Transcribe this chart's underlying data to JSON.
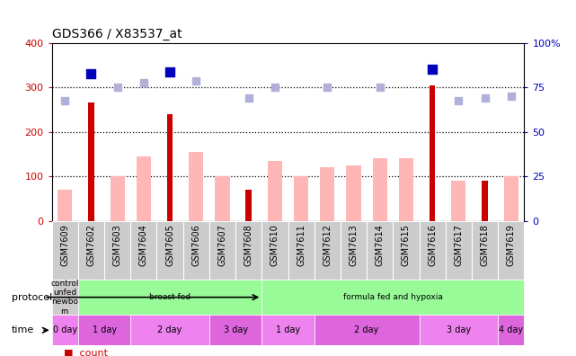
{
  "title": "GDS366 / X83537_at",
  "samples": [
    "GSM7609",
    "GSM7602",
    "GSM7603",
    "GSM7604",
    "GSM7605",
    "GSM7606",
    "GSM7607",
    "GSM7608",
    "GSM7610",
    "GSM7611",
    "GSM7612",
    "GSM7613",
    "GSM7614",
    "GSM7615",
    "GSM7616",
    "GSM7617",
    "GSM7618",
    "GSM7619"
  ],
  "count_values": [
    0,
    265,
    0,
    0,
    240,
    0,
    0,
    70,
    0,
    0,
    0,
    0,
    0,
    0,
    305,
    0,
    90,
    0
  ],
  "rank_values_left": [
    0,
    330,
    0,
    0,
    335,
    0,
    0,
    0,
    0,
    0,
    0,
    0,
    0,
    0,
    340,
    0,
    0,
    0
  ],
  "pink_values": [
    70,
    0,
    100,
    145,
    0,
    155,
    100,
    0,
    135,
    100,
    120,
    125,
    140,
    140,
    0,
    90,
    0,
    100
  ],
  "lavender_values": [
    270,
    0,
    300,
    310,
    0,
    315,
    0,
    275,
    300,
    0,
    300,
    0,
    300,
    0,
    0,
    270,
    275,
    280
  ],
  "ylim": [
    0,
    400
  ],
  "y2lim": [
    0,
    100
  ],
  "yticks_left": [
    0,
    100,
    200,
    300,
    400
  ],
  "yticks_right": [
    0,
    25,
    50,
    75,
    100
  ],
  "dotted_lines": [
    100,
    200,
    300
  ],
  "protocol_segments": [
    {
      "text": "control\nunfed\nnewbo\nrn",
      "start": 0,
      "end": 1,
      "color": "#cccccc"
    },
    {
      "text": "breast fed",
      "start": 1,
      "end": 8,
      "color": "#98fb98"
    },
    {
      "text": "formula fed and hypoxia",
      "start": 8,
      "end": 18,
      "color": "#98fb98"
    }
  ],
  "time_segments": [
    {
      "text": "0 day",
      "start": 0,
      "end": 1,
      "color": "#ee82ee"
    },
    {
      "text": "1 day",
      "start": 1,
      "end": 3,
      "color": "#dd66dd"
    },
    {
      "text": "2 day",
      "start": 3,
      "end": 6,
      "color": "#ee82ee"
    },
    {
      "text": "3 day",
      "start": 6,
      "end": 8,
      "color": "#dd66dd"
    },
    {
      "text": "1 day",
      "start": 8,
      "end": 10,
      "color": "#ee82ee"
    },
    {
      "text": "2 day",
      "start": 10,
      "end": 14,
      "color": "#dd66dd"
    },
    {
      "text": "3 day",
      "start": 14,
      "end": 17,
      "color": "#ee82ee"
    },
    {
      "text": "4 day",
      "start": 17,
      "end": 18,
      "color": "#dd66dd"
    }
  ],
  "bar_color_red": "#cc0000",
  "bar_color_blue": "#0000bb",
  "bar_color_pink": "#ffb6b6",
  "bar_color_lavender": "#b0b0d8",
  "left_axis_color": "#cc0000",
  "right_axis_color": "#0000bb",
  "xtick_bg": "#cccccc",
  "plot_bg": "#ffffff"
}
